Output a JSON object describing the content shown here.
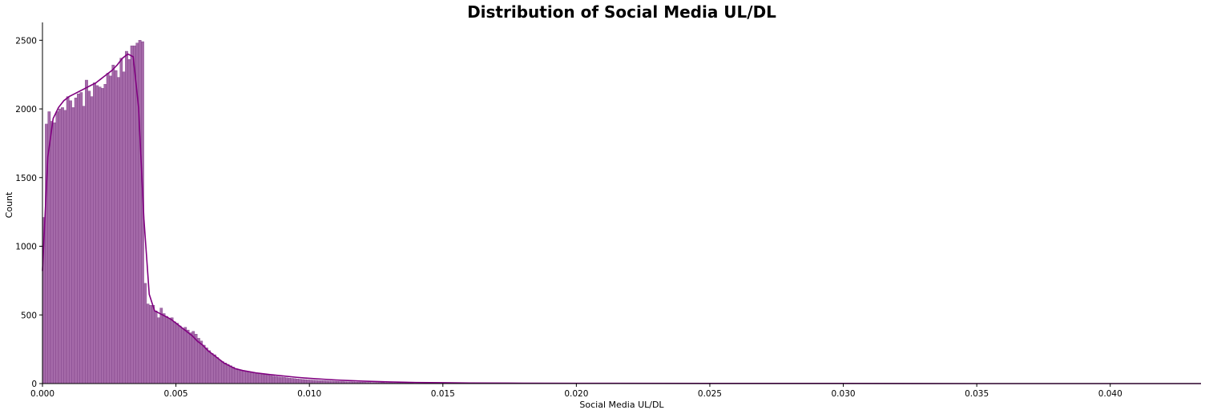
{
  "chart_data": {
    "type": "bar",
    "subtype": "histogram-with-kde",
    "title": "Distribution of Social Media UL/DL",
    "xlabel": "Social Media UL/DL",
    "ylabel": "Count",
    "xlim": [
      0,
      0.0434
    ],
    "ylim": [
      0,
      2630
    ],
    "xticks": [
      0.0,
      0.005,
      0.01,
      0.015,
      0.02,
      0.025,
      0.03,
      0.035,
      0.04
    ],
    "xtick_labels": [
      "0.000",
      "0.005",
      "0.010",
      "0.015",
      "0.020",
      "0.025",
      "0.030",
      "0.035",
      "0.040"
    ],
    "yticks": [
      0,
      500,
      1000,
      1500,
      2000,
      2500
    ],
    "ytick_labels": [
      "0",
      "500",
      "1000",
      "1500",
      "2000",
      "2500"
    ],
    "grid": false,
    "colors": {
      "bar": "#9b5aa0",
      "bar_edge": "#7d3f85",
      "kde": "#800080"
    },
    "histogram": {
      "bin_width": 0.0001,
      "bin_start": 0.0,
      "counts": [
        1210,
        1890,
        1980,
        1910,
        1900,
        1980,
        2000,
        2010,
        1990,
        2090,
        2060,
        2010,
        2080,
        2110,
        2120,
        2020,
        2210,
        2130,
        2090,
        2190,
        2170,
        2160,
        2150,
        2180,
        2260,
        2240,
        2320,
        2280,
        2230,
        2370,
        2270,
        2420,
        2360,
        2460,
        2460,
        2480,
        2500,
        2490,
        730,
        580,
        570,
        570,
        530,
        480,
        550,
        510,
        490,
        470,
        480,
        450,
        440,
        420,
        400,
        410,
        390,
        370,
        380,
        360,
        330,
        310,
        280,
        260,
        240,
        220,
        210,
        190,
        170,
        160,
        150,
        140,
        130,
        120,
        110,
        100,
        98,
        94,
        90,
        86,
        82,
        78,
        74,
        71,
        68,
        65,
        62,
        58,
        55,
        52,
        49,
        47,
        45,
        42,
        40,
        38,
        36,
        34,
        32,
        30,
        29,
        27,
        26,
        25,
        24,
        23,
        22,
        21,
        20,
        19,
        18,
        17,
        16,
        15,
        15,
        14,
        13,
        13,
        12,
        11,
        11,
        10,
        10,
        9,
        9,
        8,
        8,
        7,
        7,
        7,
        6,
        6,
        6,
        5,
        5,
        5,
        5,
        4,
        4,
        4,
        4,
        3,
        3,
        3,
        3,
        3,
        3,
        2,
        2,
        2,
        2,
        2,
        2,
        2,
        2,
        2,
        1,
        1,
        1,
        1,
        1,
        1,
        1,
        1,
        1,
        1,
        1,
        1,
        1,
        1,
        1,
        1,
        1,
        1,
        1,
        1
      ]
    },
    "kde": {
      "x": [
        0.0,
        0.0002,
        0.0004,
        0.0006,
        0.0008,
        0.001,
        0.0012,
        0.0014,
        0.0016,
        0.0018,
        0.002,
        0.0022,
        0.0024,
        0.0026,
        0.0028,
        0.003,
        0.0032,
        0.0034,
        0.0036,
        0.0038,
        0.004,
        0.0042,
        0.0044,
        0.0046,
        0.0048,
        0.005,
        0.0052,
        0.0054,
        0.0056,
        0.0058,
        0.006,
        0.0062,
        0.0064,
        0.0066,
        0.0068,
        0.007,
        0.0072,
        0.0075,
        0.008,
        0.0085,
        0.009,
        0.0095,
        0.01,
        0.0105,
        0.011,
        0.012,
        0.013,
        0.014,
        0.015,
        0.016,
        0.018,
        0.02,
        0.025,
        0.03,
        0.035,
        0.04,
        0.0434
      ],
      "y": [
        820,
        1650,
        1930,
        2010,
        2060,
        2090,
        2110,
        2130,
        2150,
        2170,
        2190,
        2220,
        2250,
        2280,
        2320,
        2370,
        2400,
        2380,
        2010,
        1200,
        650,
        530,
        510,
        490,
        470,
        440,
        410,
        380,
        350,
        310,
        280,
        240,
        210,
        180,
        150,
        130,
        110,
        95,
        78,
        66,
        56,
        46,
        38,
        32,
        26,
        18,
        12,
        8,
        6,
        4,
        3,
        2,
        1,
        1,
        0,
        0,
        0
      ]
    }
  }
}
